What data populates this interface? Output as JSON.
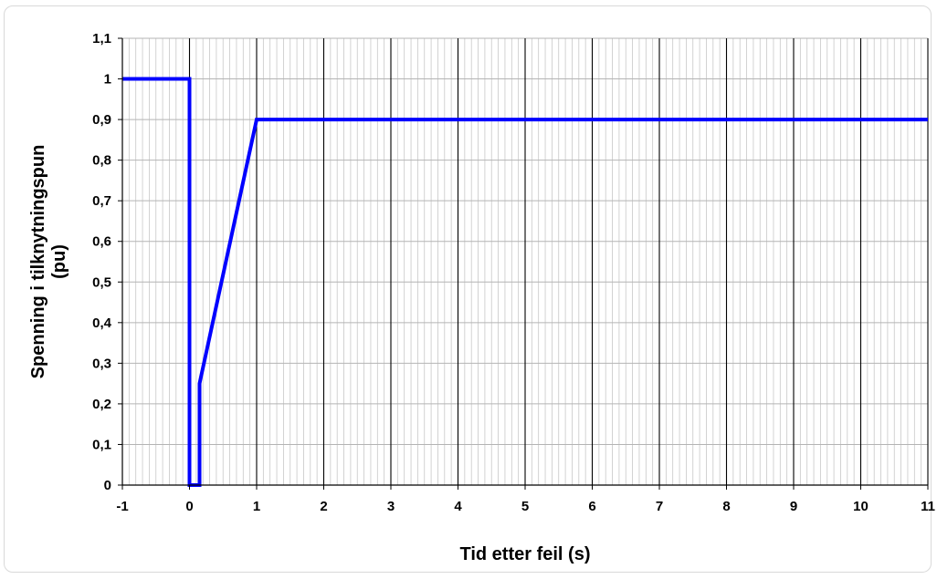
{
  "chart_data": {
    "type": "line",
    "title": "",
    "xlabel": "Tid etter feil (s)",
    "ylabel_lines": [
      "Spenning i tilknytningspun",
      "(pu)"
    ],
    "xlim": [
      -1,
      11
    ],
    "ylim": [
      0,
      1.1
    ],
    "x_ticks": [
      -1,
      0,
      1,
      2,
      3,
      4,
      5,
      6,
      7,
      8,
      9,
      10,
      11
    ],
    "x_tick_labels": [
      "-1",
      "0",
      "1",
      "2",
      "3",
      "4",
      "5",
      "6",
      "7",
      "8",
      "9",
      "10",
      "11"
    ],
    "x_minor_step": 0.1,
    "y_ticks": [
      0,
      0.1,
      0.2,
      0.3,
      0.4,
      0.5,
      0.6,
      0.7,
      0.8,
      0.9,
      1.0,
      1.1
    ],
    "y_tick_labels": [
      "0",
      "0,1",
      "0,2",
      "0,3",
      "0,4",
      "0,5",
      "0,6",
      "0,7",
      "0,8",
      "0,9",
      "1",
      "1,1"
    ],
    "grid": true,
    "legend": "none",
    "series": [
      {
        "color": "#0000ff",
        "x": [
          -1,
          0,
          0,
          0.15,
          0.15,
          1,
          11
        ],
        "y": [
          1,
          1,
          0,
          0,
          0.25,
          0.9,
          0.9
        ]
      }
    ]
  }
}
